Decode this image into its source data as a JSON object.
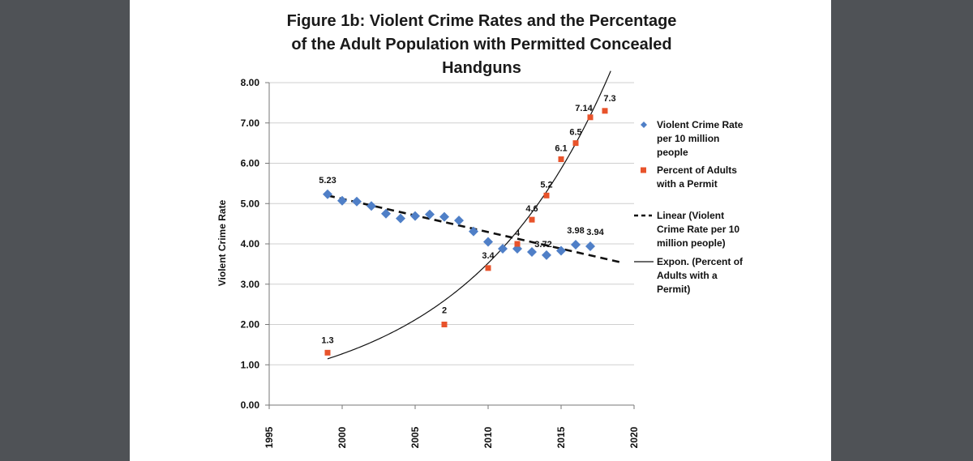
{
  "chart_data": {
    "type": "scatter",
    "title_lines": [
      "Figure 1b: Violent Crime Rates and the Percentage",
      "of the Adult Population with Permitted Concealed",
      "Handguns"
    ],
    "ylabel": "Violent Crime Rate",
    "xlim": [
      1995,
      2020
    ],
    "ylim": [
      0,
      8
    ],
    "y_ticks": [
      "0.00",
      "1.00",
      "2.00",
      "3.00",
      "4.00",
      "5.00",
      "6.00",
      "7.00",
      "8.00"
    ],
    "x_ticks": [
      "1995",
      "2000",
      "2005",
      "2010",
      "2015",
      "2020"
    ],
    "grid": true,
    "legend_position": "right",
    "series": [
      {
        "name": "Violent Crime Rate per 10 million people",
        "marker": "diamond",
        "color": "#4f7fc7",
        "points": [
          [
            1999,
            5.23
          ],
          [
            2000,
            5.07
          ],
          [
            2001,
            5.05
          ],
          [
            2002,
            4.94
          ],
          [
            2003,
            4.75
          ],
          [
            2004,
            4.63
          ],
          [
            2005,
            4.69
          ],
          [
            2006,
            4.73
          ],
          [
            2007,
            4.67
          ],
          [
            2008,
            4.58
          ],
          [
            2009,
            4.31
          ],
          [
            2010,
            4.05
          ],
          [
            2011,
            3.88
          ],
          [
            2012,
            3.88
          ],
          [
            2013,
            3.8
          ],
          [
            2014,
            3.72
          ],
          [
            2015,
            3.83
          ],
          [
            2016,
            3.98
          ],
          [
            2017,
            3.94
          ]
        ],
        "labels": [
          {
            "x": 1999,
            "y": 5.23,
            "text": "5.23"
          },
          {
            "x": 2014,
            "y": 3.72,
            "text": "3.72"
          },
          {
            "x": 2016,
            "y": 3.98,
            "text": "3.98"
          },
          {
            "x": 2017,
            "y": 3.94,
            "text": "3.94"
          }
        ]
      },
      {
        "name": "Percent of Adults with a Permit",
        "marker": "square",
        "color": "#e8532b",
        "points": [
          [
            1999,
            1.3
          ],
          [
            2007,
            2
          ],
          [
            2010,
            3.4
          ],
          [
            2012,
            4
          ],
          [
            2013,
            4.6
          ],
          [
            2014,
            5.2
          ],
          [
            2015,
            6.1
          ],
          [
            2016,
            6.5
          ],
          [
            2017,
            7.14
          ],
          [
            2018,
            7.3
          ]
        ],
        "labels": [
          {
            "x": 1999,
            "y": 1.3,
            "text": "1.3"
          },
          {
            "x": 2007,
            "y": 2,
            "text": "2"
          },
          {
            "x": 2010,
            "y": 3.4,
            "text": "3.4"
          },
          {
            "x": 2012,
            "y": 4,
            "text": "4"
          },
          {
            "x": 2013,
            "y": 4.6,
            "text": "4.6"
          },
          {
            "x": 2014,
            "y": 5.2,
            "text": "5.2"
          },
          {
            "x": 2015,
            "y": 6.1,
            "text": "6.1"
          },
          {
            "x": 2016,
            "y": 6.5,
            "text": "6.5"
          },
          {
            "x": 2017,
            "y": 7.14,
            "text": "7.14"
          },
          {
            "x": 2018,
            "y": 7.3,
            "text": "7.3"
          }
        ]
      }
    ],
    "trendlines": [
      {
        "name": "Linear (Violent Crime Rate per 10 million people)",
        "kind": "linear",
        "style": "dashed",
        "from": [
          1999,
          5.2
        ],
        "to": [
          2019,
          3.55
        ]
      },
      {
        "name": "Expon. (Percent of Adults with a Permit)",
        "kind": "exponential",
        "style": "solid",
        "a": 1.1481,
        "b": 0.1019,
        "x0": 1999,
        "range": [
          1999,
          2018.4
        ]
      }
    ],
    "legend": [
      {
        "symbol": "diamond",
        "lines": [
          "Violent Crime Rate",
          "per 10 million",
          "people"
        ]
      },
      {
        "symbol": "square",
        "lines": [
          "Percent of Adults",
          "with a Permit"
        ]
      },
      {
        "symbol": "dash",
        "lines": [
          "Linear (Violent",
          "Crime Rate per 10",
          "million people)"
        ]
      },
      {
        "symbol": "line",
        "lines": [
          "Expon. (Percent of",
          "Adults with a",
          "Permit)"
        ]
      }
    ]
  }
}
